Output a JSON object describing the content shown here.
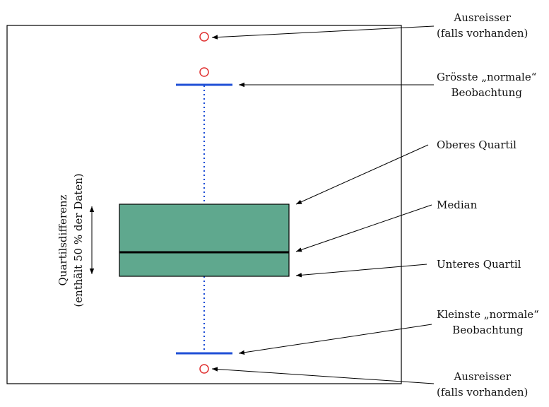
{
  "annotations": {
    "outlier_top": [
      "Ausreisser",
      "(falls vorhanden)"
    ],
    "max_whisker": [
      "Grösste „normale“",
      "Beobachtung"
    ],
    "upper_quartile": [
      "Oberes Quartil"
    ],
    "median": [
      "Median"
    ],
    "lower_quartile": [
      "Unteres Quartil"
    ],
    "min_whisker": [
      "Kleinste „normale“",
      "Beobachtung"
    ],
    "outlier_bottom": [
      "Ausreisser",
      "(falls vorhanden)"
    ],
    "iqr": [
      "Quartilsdifferenz",
      "(enthält 50 % der Daten)"
    ]
  },
  "colors": {
    "box_fill": "#5fa88e",
    "whisker": "#1f4fd6",
    "outlier": "#e03030",
    "line": "#000000"
  }
}
